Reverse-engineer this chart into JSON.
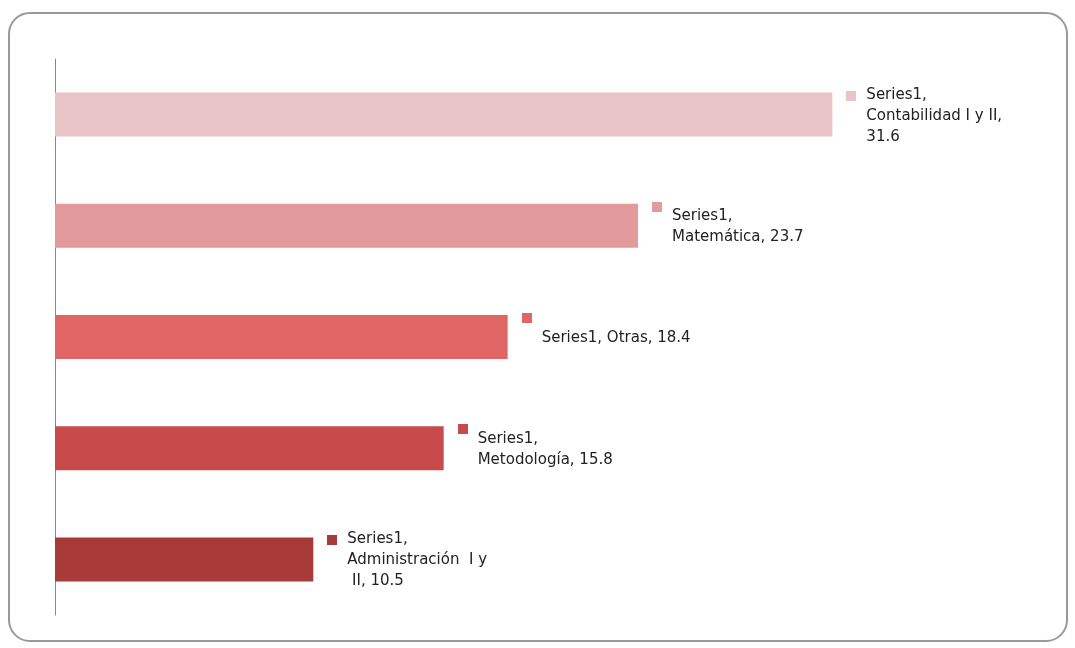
{
  "chart_data": {
    "type": "bar",
    "orientation": "horizontal",
    "categories": [
      null,
      null,
      null,
      null,
      null
    ],
    "series": [
      {
        "values": [
          31.6,
          23.7,
          18.4,
          15.8,
          10.5
        ],
        "colors": [
          "#e8c4c6",
          "#e39a9c",
          "#e06666",
          "#c94a4a",
          "#a83a3a"
        ],
        "value_labels": [
          "Series1, Contabilidad I y II, 31.6",
          "Series1, Matemática, 23.7",
          "Series1, Otras, 18.4",
          "Series1, Metodología, 15.8",
          "Series1, Administración  I y II, 10.5"
        ]
      }
    ],
    "tick_labels": false,
    "grid": false
  }
}
